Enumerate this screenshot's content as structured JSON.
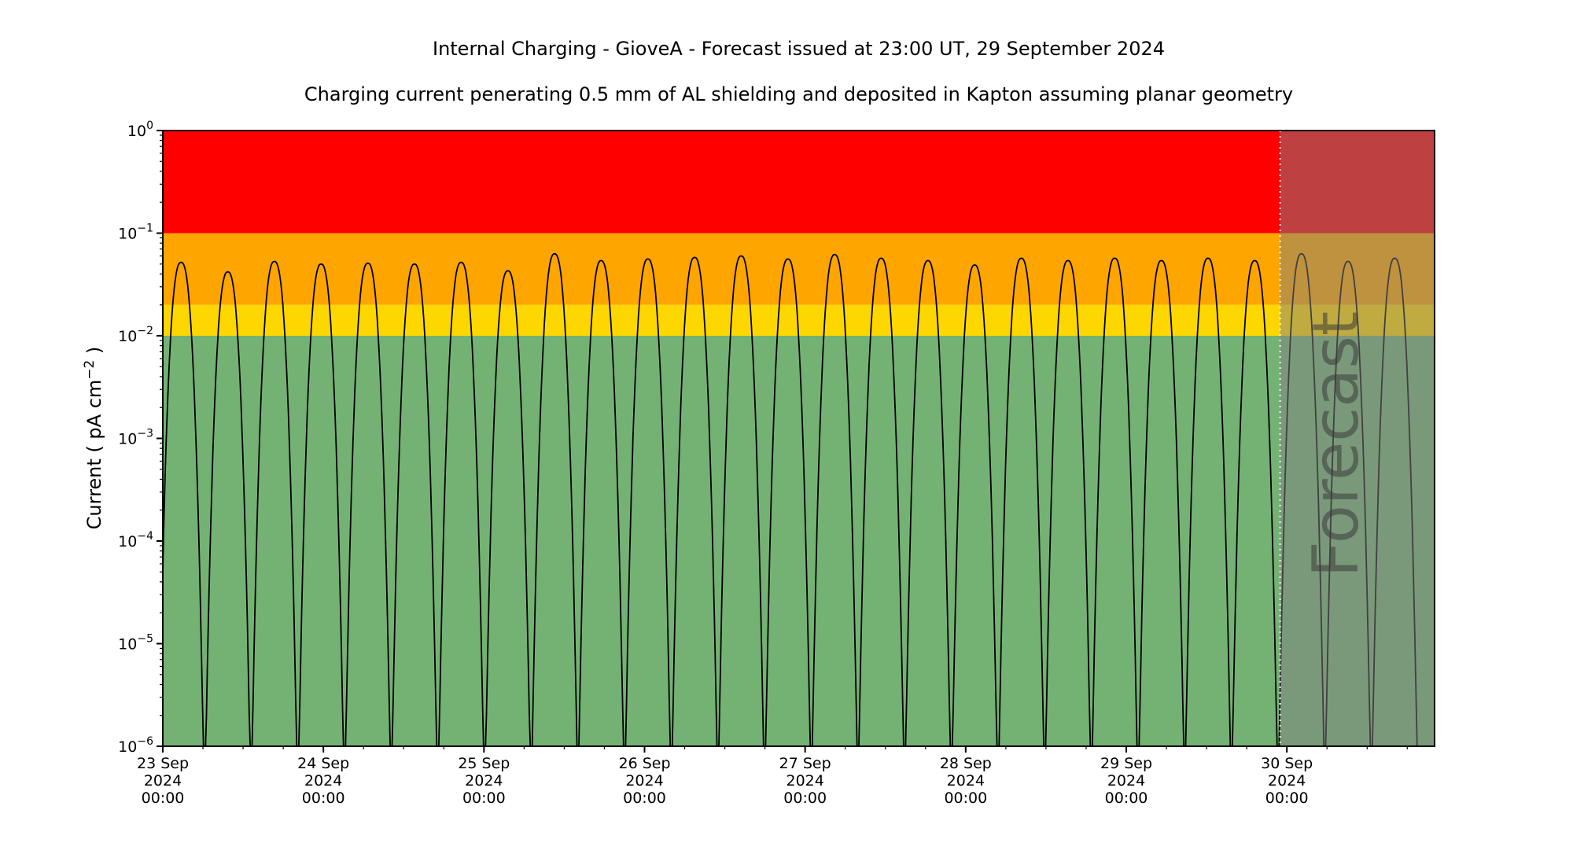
{
  "figure": {
    "title": "Internal Charging - GioveA - Forecast issued at 23:00 UT, 29 September 2024",
    "subtitle": "Charging current penerating 0.5 mm of AL shielding and deposited in Kapton assuming planar geometry"
  },
  "chart_data": {
    "type": "line",
    "title": "Internal Charging - GioveA - Forecast issued at 23:00 UT, 29 September 2024",
    "subtitle": "Charging current penerating 0.5 mm of AL shielding and deposited in Kapton assuming planar geometry",
    "ylabel": {
      "pre": "Current ( pA cm",
      "sup": "−2",
      "post": " )"
    },
    "y_scale": "log",
    "ylim": [
      1e-06,
      1.0
    ],
    "x_range_days": [
      0,
      7.92
    ],
    "grid": false,
    "legend": "none",
    "line_color": "#000000",
    "x_ticks": [
      {
        "t": 0,
        "lines": [
          "23 Sep",
          "2024",
          "00:00"
        ]
      },
      {
        "t": 1,
        "lines": [
          "24 Sep",
          "2024",
          "00:00"
        ]
      },
      {
        "t": 2,
        "lines": [
          "25 Sep",
          "2024",
          "00:00"
        ]
      },
      {
        "t": 3,
        "lines": [
          "26 Sep",
          "2024",
          "00:00"
        ]
      },
      {
        "t": 4,
        "lines": [
          "27 Sep",
          "2024",
          "00:00"
        ]
      },
      {
        "t": 5,
        "lines": [
          "28 Sep",
          "2024",
          "00:00"
        ]
      },
      {
        "t": 6,
        "lines": [
          "29 Sep",
          "2024",
          "00:00"
        ]
      },
      {
        "t": 7,
        "lines": [
          "30 Sep",
          "2024",
          "00:00"
        ]
      }
    ],
    "y_ticks": [
      {
        "value": 1.0,
        "base": "10",
        "exp": "0"
      },
      {
        "value": 0.1,
        "base": "10",
        "exp": "−1"
      },
      {
        "value": 0.01,
        "base": "10",
        "exp": "−2"
      },
      {
        "value": 0.001,
        "base": "10",
        "exp": "−3"
      },
      {
        "value": 0.0001,
        "base": "10",
        "exp": "−4"
      },
      {
        "value": 1e-05,
        "base": "10",
        "exp": "−5"
      },
      {
        "value": 1e-06,
        "base": "10",
        "exp": "−6"
      }
    ],
    "bands": [
      {
        "name": "red-alert",
        "from": 0.1,
        "to": 1.0,
        "color": "#ff0000"
      },
      {
        "name": "orange-alert",
        "from": 0.02,
        "to": 0.1,
        "color": "#ffa500"
      },
      {
        "name": "yellow-alert",
        "from": 0.01,
        "to": 0.02,
        "color": "#ffd700"
      },
      {
        "name": "green-safe",
        "from": 1e-06,
        "to": 0.01,
        "color": "#74b274"
      }
    ],
    "forecast": {
      "start_day": 6.958,
      "label": "Forecast",
      "overlay_color": "rgba(128,128,128,0.5)",
      "divider_color": "#ffffff",
      "divider_style": "dotted"
    },
    "spikes": [
      {
        "t": 0.114,
        "peak": 0.052
      },
      {
        "t": 0.405,
        "peak": 0.042
      },
      {
        "t": 0.695,
        "peak": 0.053
      },
      {
        "t": 0.986,
        "peak": 0.05
      },
      {
        "t": 1.277,
        "peak": 0.051
      },
      {
        "t": 1.567,
        "peak": 0.05
      },
      {
        "t": 1.858,
        "peak": 0.052
      },
      {
        "t": 2.149,
        "peak": 0.043
      },
      {
        "t": 2.44,
        "peak": 0.063
      },
      {
        "t": 2.73,
        "peak": 0.054
      },
      {
        "t": 3.021,
        "peak": 0.056
      },
      {
        "t": 3.312,
        "peak": 0.058
      },
      {
        "t": 3.602,
        "peak": 0.06
      },
      {
        "t": 3.893,
        "peak": 0.056
      },
      {
        "t": 4.184,
        "peak": 0.062
      },
      {
        "t": 4.474,
        "peak": 0.057
      },
      {
        "t": 4.765,
        "peak": 0.054
      },
      {
        "t": 5.056,
        "peak": 0.049
      },
      {
        "t": 5.347,
        "peak": 0.057
      },
      {
        "t": 5.637,
        "peak": 0.054
      },
      {
        "t": 5.928,
        "peak": 0.057
      },
      {
        "t": 6.219,
        "peak": 0.054
      },
      {
        "t": 6.509,
        "peak": 0.057
      },
      {
        "t": 6.8,
        "peak": 0.054
      },
      {
        "t": 7.091,
        "peak": 0.063
      },
      {
        "t": 7.381,
        "peak": 0.053
      },
      {
        "t": 7.672,
        "peak": 0.057
      }
    ]
  }
}
